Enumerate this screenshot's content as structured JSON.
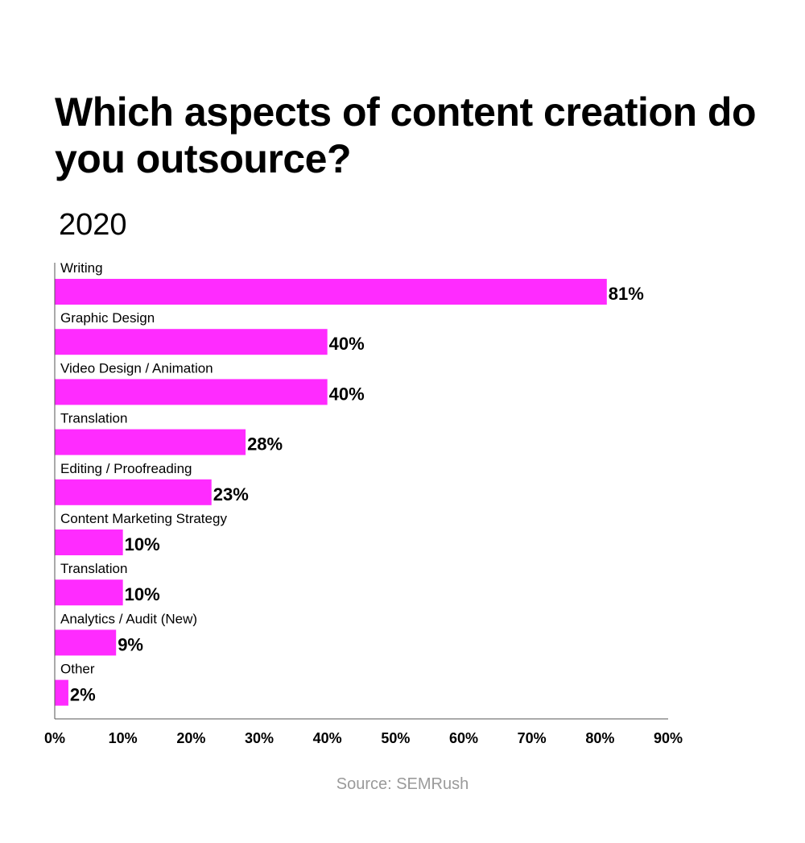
{
  "chart_data": {
    "type": "bar",
    "orientation": "horizontal",
    "title": "Which aspects of content creation do you outsource?",
    "subtitle": "2020",
    "categories": [
      "Writing",
      "Graphic Design",
      "Video Design / Animation",
      "Translation",
      "Editing / Proofreading",
      "Content Marketing Strategy",
      "Translation",
      "Analytics / Audit (New)",
      "Other"
    ],
    "values": [
      81,
      40,
      40,
      28,
      23,
      10,
      10,
      9,
      2
    ],
    "value_labels": [
      "81%",
      "40%",
      "40%",
      "28%",
      "23%",
      "10%",
      "10%",
      "9%",
      "2%"
    ],
    "xlim": [
      0,
      90
    ],
    "x_ticks": [
      0,
      10,
      20,
      30,
      40,
      50,
      60,
      70,
      80,
      90
    ],
    "x_tick_labels": [
      "0%",
      "10%",
      "20%",
      "30%",
      "40%",
      "50%",
      "60%",
      "70%",
      "80%",
      "90%"
    ],
    "xlabel": "",
    "ylabel": "",
    "grid": false,
    "legend": "none",
    "bar_color": "#ff2bff",
    "source": "Source: SEMRush"
  }
}
